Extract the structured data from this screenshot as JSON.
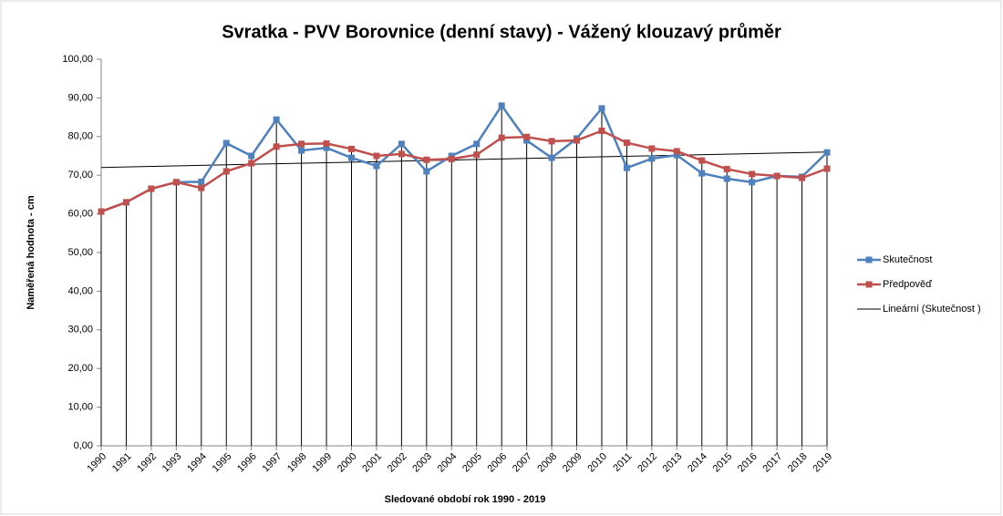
{
  "chart_data": {
    "type": "line",
    "title": "Svratka - PVV Borovnice (denní stavy) - Vážený klouzavý průměr",
    "x_label": "Sledované období rok 1990 - 2019",
    "y_label": "Naměřená hodnota - cm",
    "categories": [
      "1990",
      "1991",
      "1992",
      "1993",
      "1994",
      "1995",
      "1996",
      "1997",
      "1998",
      "1999",
      "2000",
      "2001",
      "2002",
      "2003",
      "2004",
      "2005",
      "2006",
      "2007",
      "2008",
      "2009",
      "2010",
      "2011",
      "2012",
      "2013",
      "2014",
      "2015",
      "2016",
      "2017",
      "2018",
      "2019"
    ],
    "series": [
      {
        "name": "Skutečnost",
        "color": "#4f81bd",
        "marker_color": "#4f81bd",
        "values": [
          60.6,
          63.0,
          66.5,
          68.2,
          68.3,
          78.3,
          75.0,
          84.4,
          76.4,
          77.1,
          74.5,
          72.4,
          78.1,
          71.0,
          75.0,
          78.1,
          88.0,
          79.0,
          74.5,
          79.5,
          87.3,
          71.9,
          74.3,
          75.2,
          70.5,
          69.1,
          68.2,
          69.8,
          69.6,
          75.9
        ]
      },
      {
        "name": "Předpověď",
        "color": "#c0504d",
        "marker_color": "#c0504d",
        "values": [
          60.6,
          63.0,
          66.5,
          68.2,
          66.7,
          71.0,
          73.1,
          77.4,
          78.1,
          78.2,
          76.8,
          75.0,
          75.5,
          74.0,
          74.2,
          75.3,
          79.7,
          79.9,
          78.8,
          79.0,
          81.5,
          78.4,
          76.9,
          76.2,
          73.8,
          71.6,
          70.3,
          69.8,
          69.3,
          71.7
        ]
      }
    ],
    "trendline": {
      "name": "Lineární (Skutečnost )",
      "color": "#000000",
      "start": 72.0,
      "end": 76.0
    },
    "ylim": [
      0,
      100
    ],
    "yticks": [
      {
        "value": 0,
        "label": "0,00"
      },
      {
        "value": 10,
        "label": "10,00"
      },
      {
        "value": 20,
        "label": "20,00"
      },
      {
        "value": 30,
        "label": "30,00"
      },
      {
        "value": 40,
        "label": "40,00"
      },
      {
        "value": 50,
        "label": "50,00"
      },
      {
        "value": 60,
        "label": "60,00"
      },
      {
        "value": 70,
        "label": "70,00"
      },
      {
        "value": 80,
        "label": "80,00"
      },
      {
        "value": 90,
        "label": "90,00"
      },
      {
        "value": 100,
        "label": "100,00"
      }
    ],
    "drop_lines": true,
    "legend": "right"
  }
}
